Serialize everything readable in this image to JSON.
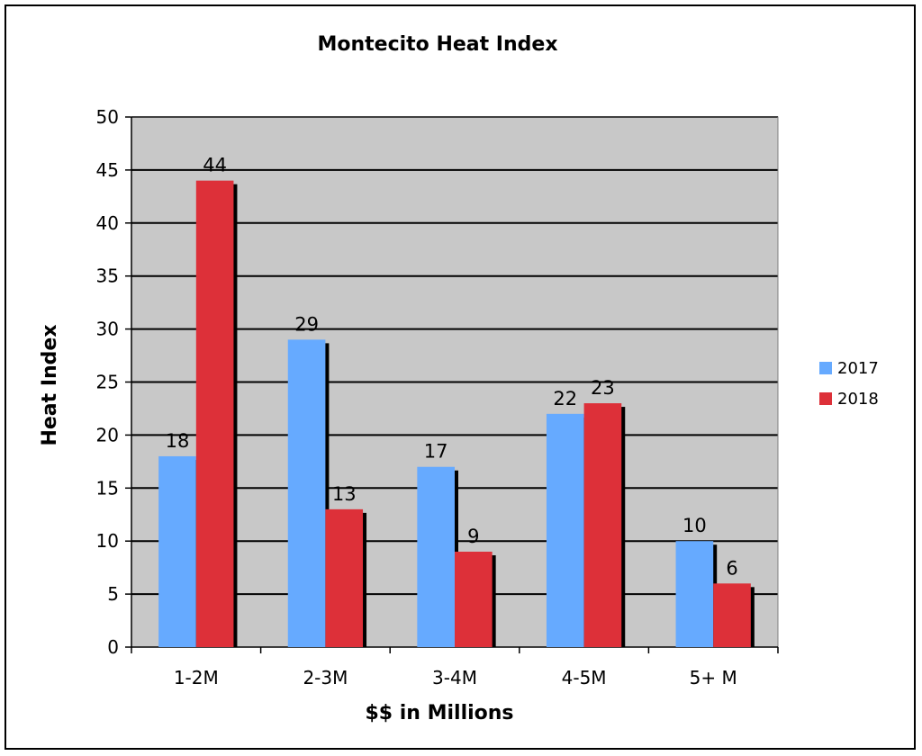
{
  "chart_data": {
    "type": "bar",
    "title": "Montecito  Heat Index",
    "xlabel": "$$ in Millions",
    "ylabel": "Heat Index",
    "categories": [
      "1-2M",
      "2-3M",
      "3-4M",
      "4-5M",
      "5+ M"
    ],
    "series": [
      {
        "name": "2017",
        "values": [
          18,
          29,
          17,
          22,
          10
        ],
        "color": "#66aaff"
      },
      {
        "name": "2018",
        "values": [
          44,
          13,
          9,
          23,
          6
        ],
        "color": "#dd3039"
      }
    ],
    "ylim": [
      0,
      50
    ],
    "yticks": [
      0,
      5,
      10,
      15,
      20,
      25,
      30,
      35,
      40,
      45,
      50
    ],
    "grid": true,
    "plot_background": "#c8c8c8",
    "legend_position": "right",
    "data_labels": true
  }
}
